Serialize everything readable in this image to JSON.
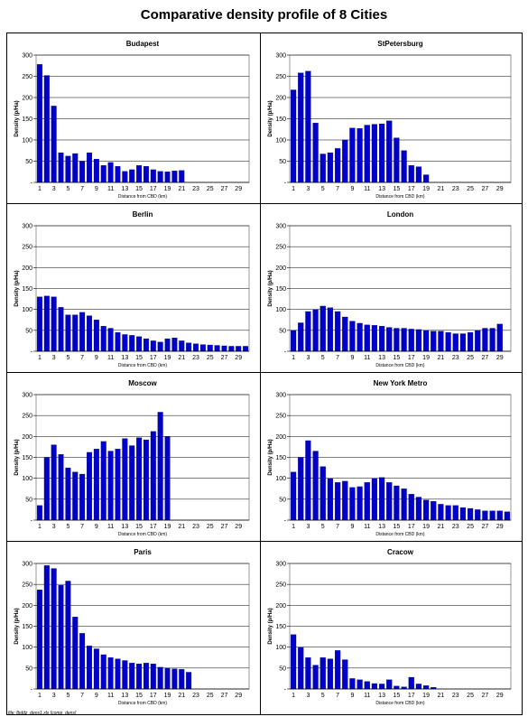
{
  "page": {
    "title": "Comparative density profile of 8 Cities",
    "footer": "file: fbddz_dens1.xls [comp_dens]"
  },
  "chart_data": [
    {
      "type": "bar",
      "title": "Budapest",
      "xlabel": "Distance from CBD (km)",
      "ylabel": "Density (p/Ha)",
      "ylim": [
        0,
        300
      ],
      "yticks": [
        "-",
        "50",
        "100",
        "150",
        "200",
        "250",
        "300"
      ],
      "categories": [
        1,
        2,
        3,
        4,
        5,
        6,
        7,
        8,
        9,
        10,
        11,
        12,
        13,
        14,
        15,
        16,
        17,
        18,
        19,
        20,
        21,
        22,
        23,
        24,
        25,
        26,
        27,
        28,
        29,
        30
      ],
      "xticks": [
        "1",
        "3",
        "5",
        "7",
        "9",
        "11",
        "13",
        "15",
        "17",
        "19",
        "21",
        "23",
        "25",
        "27",
        "29"
      ],
      "values": [
        278,
        252,
        180,
        70,
        62,
        68,
        50,
        70,
        55,
        40,
        47,
        38,
        26,
        30,
        40,
        38,
        30,
        26,
        25,
        27,
        28,
        0,
        0,
        0,
        0,
        0,
        0,
        0,
        0,
        0
      ]
    },
    {
      "type": "bar",
      "title": "StPetersburg",
      "xlabel": "Distance from CBD (km)",
      "ylabel": "Density (p/Ha)",
      "ylim": [
        0,
        300
      ],
      "yticks": [
        "-",
        "50",
        "100",
        "150",
        "200",
        "250",
        "300"
      ],
      "categories": [
        1,
        2,
        3,
        4,
        5,
        6,
        7,
        8,
        9,
        10,
        11,
        12,
        13,
        14,
        15,
        16,
        17,
        18,
        19,
        20,
        21,
        22,
        23,
        24,
        25,
        26,
        27,
        28,
        29,
        30
      ],
      "xticks": [
        "1",
        "3",
        "5",
        "7",
        "9",
        "11",
        "13",
        "15",
        "17",
        "19",
        "21",
        "23",
        "25",
        "27",
        "29"
      ],
      "values": [
        218,
        258,
        262,
        140,
        67,
        70,
        80,
        100,
        128,
        127,
        135,
        137,
        138,
        145,
        105,
        75,
        40,
        37,
        18,
        0,
        0,
        0,
        0,
        0,
        0,
        0,
        0,
        0,
        0,
        0
      ]
    },
    {
      "type": "bar",
      "title": "Berlin",
      "xlabel": "Distance from CBD (km)",
      "ylabel": "Density (p/Ha)",
      "ylim": [
        0,
        300
      ],
      "yticks": [
        "-",
        "50",
        "100",
        "150",
        "200",
        "250",
        "300"
      ],
      "categories": [
        1,
        2,
        3,
        4,
        5,
        6,
        7,
        8,
        9,
        10,
        11,
        12,
        13,
        14,
        15,
        16,
        17,
        18,
        19,
        20,
        21,
        22,
        23,
        24,
        25,
        26,
        27,
        28,
        29,
        30
      ],
      "xticks": [
        "1",
        "3",
        "5",
        "7",
        "9",
        "11",
        "13",
        "15",
        "17",
        "19",
        "21",
        "23",
        "25",
        "27",
        "29"
      ],
      "values": [
        130,
        132,
        130,
        105,
        87,
        87,
        93,
        85,
        75,
        60,
        55,
        45,
        40,
        38,
        35,
        30,
        25,
        22,
        30,
        32,
        25,
        20,
        18,
        16,
        15,
        14,
        13,
        12,
        12,
        12
      ]
    },
    {
      "type": "bar",
      "title": "London",
      "xlabel": "Distance from CBD (km)",
      "ylabel": "Density (p/Ha)",
      "ylim": [
        0,
        300
      ],
      "yticks": [
        "-",
        "50",
        "100",
        "150",
        "200",
        "250",
        "300"
      ],
      "categories": [
        1,
        2,
        3,
        4,
        5,
        6,
        7,
        8,
        9,
        10,
        11,
        12,
        13,
        14,
        15,
        16,
        17,
        18,
        19,
        20,
        21,
        22,
        23,
        24,
        25,
        26,
        27,
        28,
        29,
        30
      ],
      "xticks": [
        "1",
        "3",
        "5",
        "7",
        "9",
        "11",
        "13",
        "15",
        "17",
        "19",
        "21",
        "23",
        "25",
        "27",
        "29"
      ],
      "values": [
        50,
        68,
        95,
        100,
        108,
        104,
        95,
        82,
        72,
        67,
        63,
        62,
        60,
        57,
        55,
        55,
        53,
        52,
        50,
        48,
        48,
        45,
        42,
        42,
        45,
        50,
        55,
        55,
        65,
        0
      ]
    },
    {
      "type": "bar",
      "title": "Moscow",
      "xlabel": "Distance from CBD (km)",
      "ylabel": "Density (p/Ha)",
      "ylim": [
        0,
        300
      ],
      "yticks": [
        "-",
        "50",
        "100",
        "150",
        "200",
        "250",
        "300"
      ],
      "categories": [
        1,
        2,
        3,
        4,
        5,
        6,
        7,
        8,
        9,
        10,
        11,
        12,
        13,
        14,
        15,
        16,
        17,
        18,
        19,
        20,
        21,
        22,
        23,
        24,
        25,
        26,
        27,
        28,
        29,
        30
      ],
      "xticks": [
        "1",
        "3",
        "5",
        "7",
        "9",
        "11",
        "13",
        "15",
        "17",
        "19",
        "21",
        "23",
        "25",
        "27",
        "29"
      ],
      "values": [
        35,
        150,
        180,
        157,
        125,
        115,
        110,
        162,
        170,
        188,
        165,
        170,
        195,
        178,
        197,
        192,
        212,
        258,
        200,
        0,
        0,
        0,
        0,
        0,
        0,
        0,
        0,
        0,
        0,
        0
      ]
    },
    {
      "type": "bar",
      "title": "New York Metro",
      "xlabel": "Distance from CBD (km)",
      "ylabel": "Density (p/Ha)",
      "ylim": [
        0,
        300
      ],
      "yticks": [
        "-",
        "50",
        "100",
        "150",
        "200",
        "250",
        "300"
      ],
      "categories": [
        1,
        2,
        3,
        4,
        5,
        6,
        7,
        8,
        9,
        10,
        11,
        12,
        13,
        14,
        15,
        16,
        17,
        18,
        19,
        20,
        21,
        22,
        23,
        24,
        25,
        26,
        27,
        28,
        29,
        30
      ],
      "xticks": [
        "1",
        "3",
        "5",
        "7",
        "9",
        "11",
        "13",
        "15",
        "17",
        "19",
        "21",
        "23",
        "25",
        "27",
        "29"
      ],
      "values": [
        115,
        150,
        190,
        165,
        128,
        100,
        90,
        93,
        78,
        80,
        90,
        100,
        102,
        90,
        82,
        75,
        62,
        55,
        48,
        45,
        38,
        35,
        35,
        30,
        28,
        25,
        22,
        22,
        22,
        20
      ]
    },
    {
      "type": "bar",
      "title": "Paris",
      "xlabel": "Distance from CBD (km)",
      "ylabel": "Density (p/Ha)",
      "ylim": [
        0,
        300
      ],
      "yticks": [
        "-",
        "50",
        "100",
        "150",
        "200",
        "250",
        "300"
      ],
      "categories": [
        1,
        2,
        3,
        4,
        5,
        6,
        7,
        8,
        9,
        10,
        11,
        12,
        13,
        14,
        15,
        16,
        17,
        18,
        19,
        20,
        21,
        22,
        23,
        24,
        25,
        26,
        27,
        28,
        29,
        30
      ],
      "xticks": [
        "1",
        "3",
        "5",
        "7",
        "9",
        "11",
        "13",
        "15",
        "17",
        "19",
        "21",
        "23",
        "25",
        "27",
        "29"
      ],
      "values": [
        237,
        295,
        288,
        248,
        258,
        172,
        133,
        103,
        96,
        82,
        75,
        72,
        68,
        62,
        60,
        62,
        60,
        52,
        50,
        48,
        47,
        40,
        0,
        0,
        0,
        0,
        0,
        0,
        0,
        0
      ]
    },
    {
      "type": "bar",
      "title": "Cracow",
      "xlabel": "Distance from CBD (km)",
      "ylabel": "Density (p/Ha)",
      "ylim": [
        0,
        300
      ],
      "yticks": [
        "-",
        "50",
        "100",
        "150",
        "200",
        "250",
        "300"
      ],
      "categories": [
        1,
        2,
        3,
        4,
        5,
        6,
        7,
        8,
        9,
        10,
        11,
        12,
        13,
        14,
        15,
        16,
        17,
        18,
        19,
        20,
        21,
        22,
        23,
        24,
        25,
        26,
        27,
        28,
        29,
        30
      ],
      "xticks": [
        "1",
        "3",
        "5",
        "7",
        "9",
        "11",
        "13",
        "15",
        "17",
        "19",
        "21",
        "23",
        "25",
        "27",
        "29"
      ],
      "values": [
        130,
        100,
        75,
        57,
        75,
        72,
        92,
        70,
        25,
        22,
        18,
        13,
        12,
        22,
        7,
        5,
        28,
        12,
        8,
        4,
        0,
        0,
        0,
        0,
        0,
        0,
        0,
        0,
        0,
        0
      ]
    }
  ],
  "colors": {
    "bar": "#0000cc",
    "bar_edge": "#000066",
    "plot_bg": "#ffffff",
    "grid": "#000000"
  }
}
